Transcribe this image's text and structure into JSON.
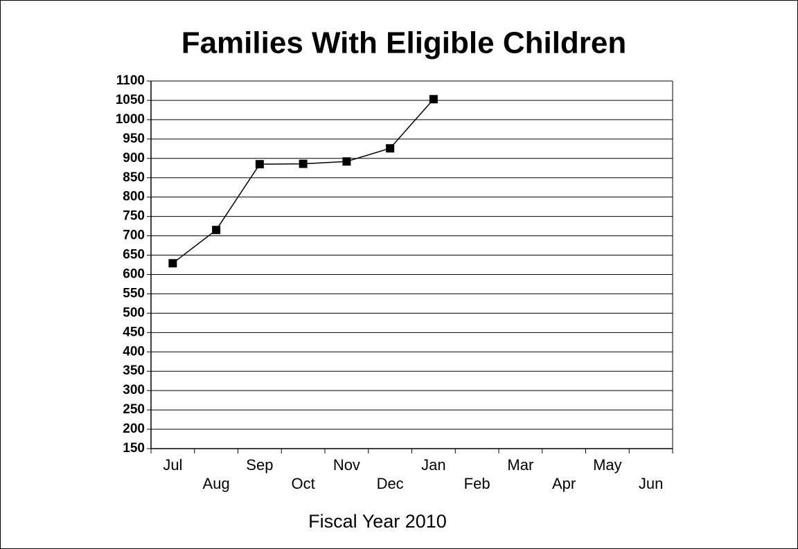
{
  "chart_data": {
    "type": "line",
    "title": "Families With Eligible Children",
    "x_label": "Fiscal Year 2010",
    "categories": [
      "Jul",
      "Aug",
      "Sep",
      "Oct",
      "Nov",
      "Dec",
      "Jan",
      "Feb",
      "Mar",
      "Apr",
      "May",
      "Jun"
    ],
    "values": [
      629,
      715,
      885,
      886,
      892,
      926,
      1053,
      null,
      null,
      null,
      null,
      null
    ],
    "color": "#000000",
    "ylim": [
      150,
      1100
    ],
    "yticks": [
      150,
      200,
      250,
      300,
      350,
      400,
      450,
      500,
      550,
      600,
      650,
      700,
      750,
      800,
      850,
      900,
      950,
      1000,
      1050,
      1100
    ],
    "grid": true
  }
}
